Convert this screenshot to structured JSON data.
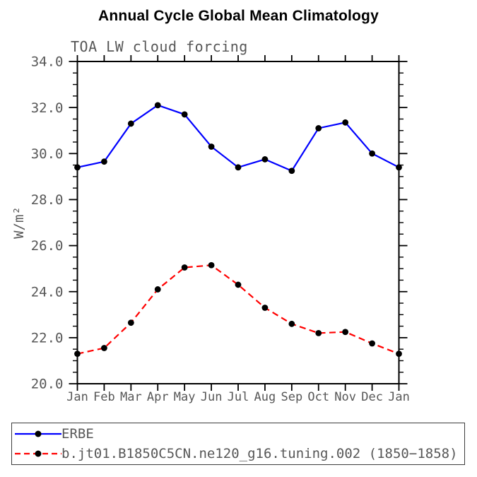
{
  "header": {
    "title": "Annual Cycle Global Mean Climatology"
  },
  "chart_data": {
    "type": "line",
    "title": "Annual Cycle Global Mean Climatology",
    "subtitle": "TOA LW cloud forcing",
    "ylabel": "W/m²",
    "xlabel": "",
    "categories": [
      "Jan",
      "Feb",
      "Mar",
      "Apr",
      "May",
      "Jun",
      "Jul",
      "Aug",
      "Sep",
      "Oct",
      "Nov",
      "Dec",
      "Jan"
    ],
    "ylim": [
      20.0,
      34.0
    ],
    "ytick_labels": [
      "20.0",
      "22.0",
      "24.0",
      "26.0",
      "28.0",
      "30.0",
      "32.0",
      "34.0"
    ],
    "ytick_minor_step": 0.5,
    "grid": false,
    "legend_position": "bottom-left-box",
    "axis_color": "#000000",
    "label_color": "#575757",
    "marker_color": "#000000",
    "series": [
      {
        "name": "ERBE",
        "color": "#0000ff",
        "line_style": "solid",
        "values": [
          29.4,
          29.65,
          31.3,
          32.1,
          31.7,
          30.3,
          29.4,
          29.75,
          29.25,
          31.1,
          31.35,
          30.0,
          29.4
        ]
      },
      {
        "name": "b.jt01.B1850C5CN.ne120_g16.tuning.002 (1850−1858)",
        "color": "#ff0000",
        "line_style": "dashed",
        "values": [
          21.3,
          21.55,
          22.65,
          24.1,
          25.05,
          25.15,
          24.3,
          23.3,
          22.6,
          22.2,
          22.25,
          21.75,
          21.3
        ]
      }
    ]
  }
}
